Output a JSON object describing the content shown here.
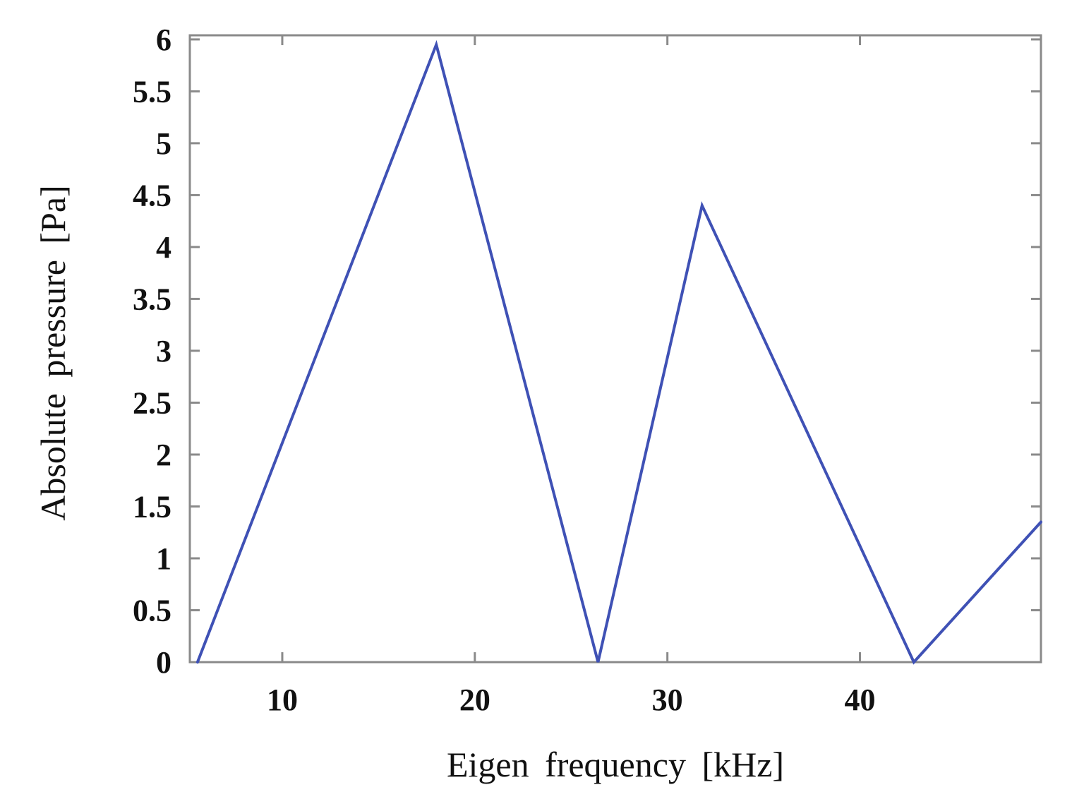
{
  "chart_data": {
    "type": "line",
    "title": "",
    "xlabel": "Eigen frequency  [kHz]",
    "ylabel": "Absolute  pressure  [Pa]",
    "xlim": [
      5.2,
      49.4
    ],
    "ylim": [
      0,
      6.04
    ],
    "xticks": [
      10,
      20,
      30,
      40
    ],
    "yticks": [
      0,
      0.5,
      1,
      1.5,
      2,
      2.5,
      3,
      3.5,
      4,
      4.5,
      5,
      5.5,
      6
    ],
    "xtick_labels": [
      "10",
      "20",
      "30",
      "40"
    ],
    "ytick_labels": [
      "0",
      "0.5",
      "1",
      "1.5",
      "2",
      "2.5",
      "3",
      "3.5",
      "4",
      "4.5",
      "5",
      "5.5",
      "6"
    ],
    "grid": false,
    "series": [
      {
        "x": [
          5.6,
          18.0,
          26.4,
          31.8,
          42.8,
          49.4
        ],
        "y": [
          0,
          5.95,
          0,
          4.4,
          0,
          1.35
        ],
        "color": "#3f51b5"
      }
    ]
  }
}
